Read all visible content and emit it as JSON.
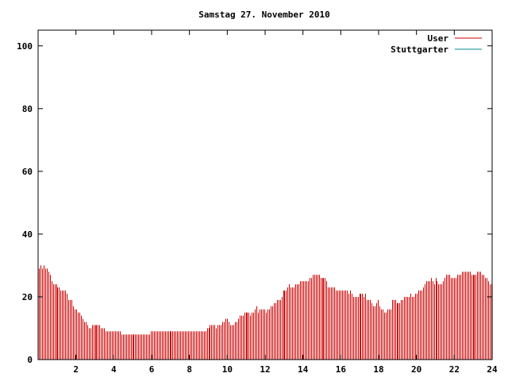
{
  "chart_data": {
    "type": "bar",
    "title": "Samstag 27. November 2010",
    "xlabel": "",
    "ylabel": "",
    "xlim": [
      0,
      24
    ],
    "ylim": [
      0,
      105
    ],
    "xticks": [
      2,
      4,
      6,
      8,
      10,
      12,
      14,
      16,
      18,
      20,
      22,
      24
    ],
    "yticks": [
      0,
      20,
      40,
      60,
      80,
      100
    ],
    "grid": false,
    "legend_position": "top-right",
    "series": [
      {
        "name": "User",
        "color": "#cc0000",
        "interval_hours": 0.0833,
        "values": [
          29,
          30,
          29,
          30,
          29,
          29,
          28,
          27,
          25,
          24,
          24,
          24,
          23,
          23,
          22,
          22,
          22,
          22,
          21,
          19,
          19,
          19,
          17,
          16,
          16,
          15,
          15,
          14,
          13,
          12,
          12,
          11,
          10,
          10,
          11,
          11,
          11,
          11,
          11,
          11,
          10,
          10,
          10,
          9,
          9,
          9,
          9,
          9,
          9,
          9,
          9,
          9,
          9,
          8,
          8,
          8,
          8,
          8,
          8,
          8,
          8,
          8,
          8,
          8,
          8,
          8,
          8,
          8,
          8,
          8,
          8,
          8,
          9,
          9,
          9,
          9,
          9,
          9,
          9,
          9,
          9,
          9,
          9,
          9,
          9,
          9,
          9,
          9,
          9,
          9,
          9,
          9,
          9,
          9,
          9,
          9,
          9,
          9,
          9,
          9,
          9,
          9,
          9,
          9,
          9,
          9,
          9,
          9,
          10,
          10,
          11,
          11,
          11,
          11,
          10,
          11,
          11,
          11,
          12,
          12,
          13,
          13,
          12,
          11,
          11,
          11,
          12,
          12,
          13,
          14,
          14,
          14,
          15,
          15,
          15,
          15,
          14,
          15,
          15,
          16,
          17,
          15,
          16,
          16,
          16,
          16,
          15,
          16,
          16,
          17,
          17,
          18,
          18,
          19,
          19,
          19,
          20,
          22,
          22,
          22,
          23,
          24,
          23,
          23,
          23,
          24,
          24,
          24,
          25,
          25,
          25,
          25,
          25,
          25,
          26,
          26,
          27,
          27,
          27,
          27,
          27,
          26,
          26,
          26,
          26,
          25,
          23,
          23,
          23,
          23,
          23,
          22,
          22,
          22,
          22,
          22,
          22,
          22,
          22,
          21,
          22,
          21,
          20,
          20,
          20,
          20,
          21,
          21,
          21,
          20,
          21,
          19,
          19,
          19,
          18,
          17,
          17,
          18,
          19,
          17,
          16,
          16,
          15,
          15,
          16,
          16,
          16,
          19,
          19,
          19,
          18,
          18,
          18,
          19,
          19,
          20,
          20,
          20,
          20,
          21,
          20,
          20,
          21,
          21,
          22,
          22,
          22,
          23,
          24,
          25,
          25,
          25,
          26,
          25,
          24,
          26,
          25,
          24,
          24,
          24,
          25,
          26,
          27,
          27,
          27,
          26,
          26,
          26,
          26,
          27,
          27,
          27,
          28,
          28,
          28,
          28,
          28,
          28,
          27,
          27,
          27,
          27,
          28,
          28,
          28,
          27,
          27,
          26,
          26,
          25,
          24,
          24
        ]
      },
      {
        "name": "Stuttgarter",
        "color": "#008b8b",
        "values": []
      }
    ]
  }
}
